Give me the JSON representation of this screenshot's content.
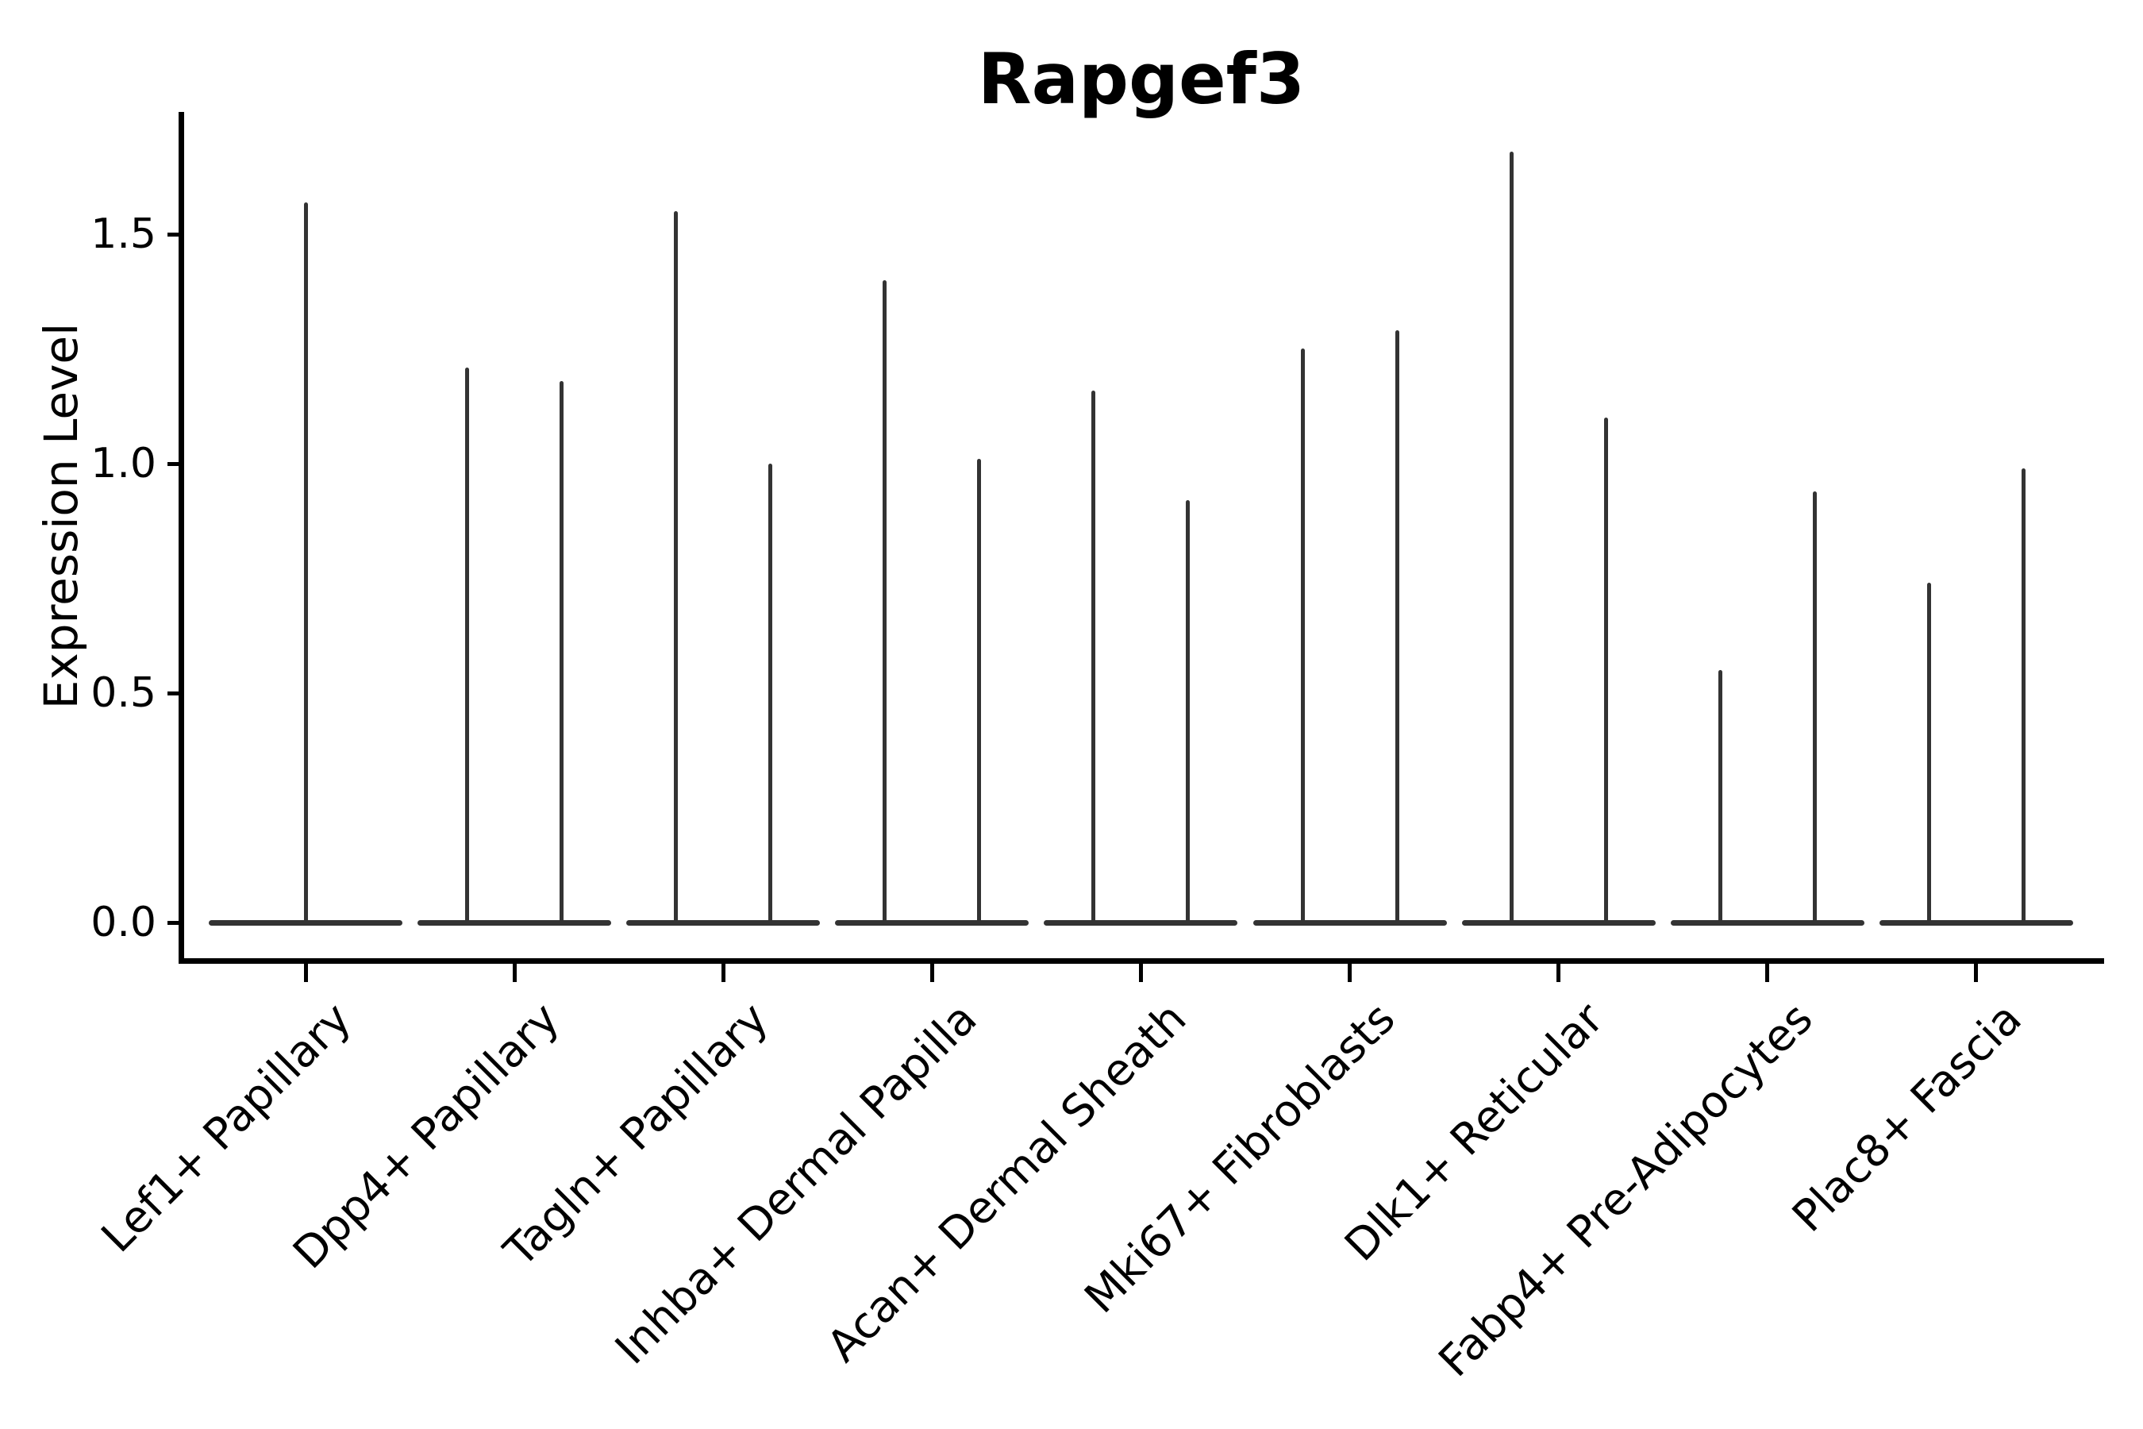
{
  "title": "Rapgef3",
  "y_axis": {
    "label": "Expression Level",
    "tick_labels": [
      "0.0",
      "0.5",
      "1.0",
      "1.5"
    ]
  },
  "chart_data": {
    "type": "violin",
    "title": "Rapgef3",
    "xlabel": "",
    "ylabel": "Expression Level",
    "ylim": [
      -0.09,
      1.77
    ],
    "ytick_values": [
      0.0,
      0.5,
      1.0,
      1.5
    ],
    "ytick_labels": [
      "0.0",
      "0.5",
      "1.0",
      "1.5"
    ],
    "grid": false,
    "legend_position": "none",
    "ink_color": "#333333",
    "categories": [
      "Lef1+ Papillary",
      "Dpp4+ Papillary",
      "Tagln+ Papillary",
      "Inhba+ Dermal Papilla",
      "Acan+ Dermal Sheath",
      "Mki67+ Fibroblasts",
      "Dlk1+ Reticular",
      "Fabp4+ Pre-Adipocytes",
      "Plac8+ Fascia"
    ],
    "violins": [
      {
        "category": "Lef1+ Papillary",
        "max_expression": [
          1.57
        ]
      },
      {
        "category": "Dpp4+ Papillary",
        "max_expression": [
          1.21,
          1.18
        ]
      },
      {
        "category": "Tagln+ Papillary",
        "max_expression": [
          1.55,
          1.0
        ]
      },
      {
        "category": "Inhba+ Dermal Papilla",
        "max_expression": [
          1.4,
          1.01
        ]
      },
      {
        "category": "Acan+ Dermal Sheath",
        "max_expression": [
          1.16,
          0.92
        ]
      },
      {
        "category": "Mki67+ Fibroblasts",
        "max_expression": [
          1.25,
          1.29
        ]
      },
      {
        "category": "Dlk1+ Reticular",
        "max_expression": [
          1.68,
          1.1
        ]
      },
      {
        "category": "Fabp4+ Pre-Adipocytes",
        "max_expression": [
          0.55,
          0.94
        ]
      },
      {
        "category": "Plac8+ Fascia",
        "max_expression": [
          0.74,
          0.99
        ]
      }
    ],
    "shape_note": "Violins are collapsed: wide flat density at 0 with a thin central spike rising to the max expression; one violin for Lef1+ Papillary, two side-by-side violins for all other categories."
  }
}
